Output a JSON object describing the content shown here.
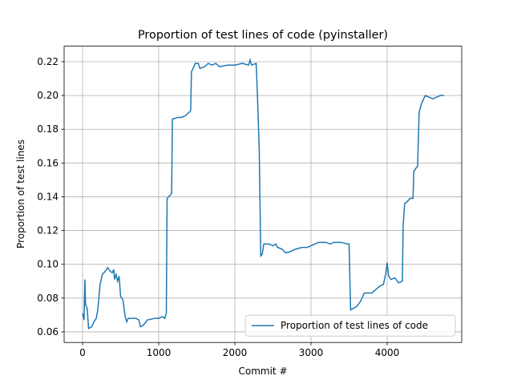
{
  "chart_data": {
    "type": "line",
    "title": "Proportion of test lines of code (pyinstaller)",
    "xlabel": "Commit #",
    "ylabel": "Proportion of test lines",
    "x": [
      0,
      20,
      30,
      40,
      60,
      80,
      120,
      150,
      180,
      200,
      230,
      260,
      300,
      330,
      360,
      390,
      410,
      420,
      440,
      460,
      480,
      500,
      530,
      560,
      580,
      600,
      700,
      740,
      760,
      800,
      850,
      950,
      1000,
      1050,
      1080,
      1100,
      1110,
      1130,
      1170,
      1180,
      1250,
      1300,
      1350,
      1400,
      1420,
      1430,
      1450,
      1480,
      1520,
      1540,
      1600,
      1650,
      1700,
      1750,
      1800,
      1900,
      2000,
      2100,
      2180,
      2200,
      2220,
      2280,
      2300,
      2320,
      2340,
      2360,
      2380,
      2450,
      2500,
      2540,
      2560,
      2620,
      2660,
      2700,
      2750,
      2800,
      2880,
      2950,
      3000,
      3050,
      3100,
      3200,
      3250,
      3300,
      3400,
      3480,
      3500,
      3520,
      3600,
      3650,
      3700,
      3800,
      3850,
      3900,
      3950,
      3980,
      4000,
      4020,
      4050,
      4100,
      4150,
      4200,
      4210,
      4230,
      4260,
      4300,
      4340,
      4350,
      4380,
      4400,
      4420,
      4450,
      4500,
      4550,
      4600,
      4650,
      4700,
      4750
    ],
    "series": [
      {
        "name": "Proportion of test lines of code",
        "color": "#1f77b4",
        "values": [
          0.071,
          0.067,
          0.091,
          0.076,
          0.074,
          0.062,
          0.063,
          0.066,
          0.068,
          0.073,
          0.088,
          0.094,
          0.096,
          0.098,
          0.096,
          0.095,
          0.097,
          0.091,
          0.094,
          0.09,
          0.093,
          0.081,
          0.079,
          0.069,
          0.066,
          0.068,
          0.068,
          0.067,
          0.063,
          0.064,
          0.067,
          0.068,
          0.068,
          0.069,
          0.068,
          0.071,
          0.139,
          0.14,
          0.142,
          0.186,
          0.187,
          0.187,
          0.188,
          0.19,
          0.191,
          0.214,
          0.216,
          0.219,
          0.219,
          0.216,
          0.217,
          0.219,
          0.218,
          0.219,
          0.217,
          0.218,
          0.218,
          0.219,
          0.218,
          0.221,
          0.218,
          0.219,
          0.196,
          0.168,
          0.105,
          0.106,
          0.112,
          0.112,
          0.111,
          0.112,
          0.11,
          0.109,
          0.107,
          0.107,
          0.108,
          0.109,
          0.11,
          0.11,
          0.111,
          0.112,
          0.113,
          0.113,
          0.112,
          0.113,
          0.113,
          0.112,
          0.112,
          0.073,
          0.075,
          0.078,
          0.083,
          0.083,
          0.085,
          0.087,
          0.088,
          0.094,
          0.101,
          0.093,
          0.091,
          0.092,
          0.089,
          0.09,
          0.123,
          0.136,
          0.137,
          0.139,
          0.139,
          0.155,
          0.157,
          0.158,
          0.19,
          0.195,
          0.2,
          0.199,
          0.198,
          0.199,
          0.2,
          0.2
        ]
      }
    ],
    "xlim": [
      -242,
      4979
    ],
    "ylim": [
      0.0537,
      0.2292
    ],
    "xticks": [
      0,
      1000,
      2000,
      3000,
      4000
    ],
    "yticks": [
      0.06,
      0.08,
      {
        "value": 0.1,
        "label": "0.10"
      },
      0.12,
      0.14,
      0.16,
      0.18,
      {
        "value": 0.2,
        "label": "0.20"
      },
      0.22
    ],
    "grid": true,
    "legend": "lower right"
  }
}
